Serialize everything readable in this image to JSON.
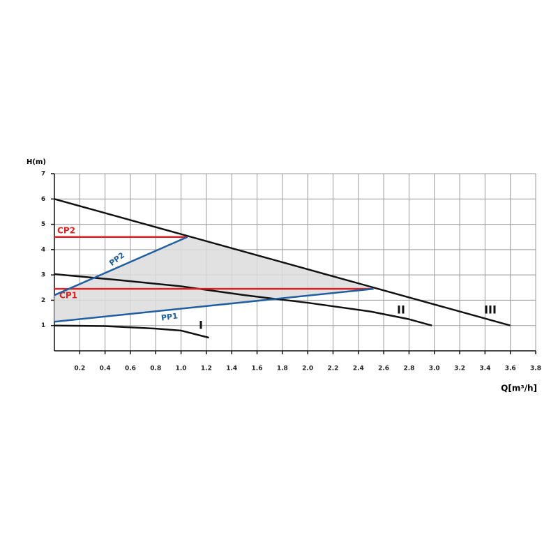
{
  "chart_data": {
    "type": "line",
    "y_label": "H(m)",
    "x_label": "Q[m³/h]",
    "xlim": [
      0,
      3.8
    ],
    "xticks": [
      0.2,
      0.4,
      0.6,
      0.8,
      {
        "value": 1,
        "label": "1.0"
      },
      1.2,
      1.4,
      1.6,
      1.8,
      {
        "value": 2,
        "label": "2.0"
      },
      2.2,
      2.4,
      2.6,
      2.8,
      {
        "value": 3,
        "label": "3.0"
      },
      3.2,
      3.4,
      3.6,
      3.8
    ],
    "ylim": [
      0,
      7
    ],
    "yticks": [
      1,
      2,
      3,
      4,
      5,
      6,
      7
    ],
    "grid": true,
    "shaded_region": {
      "color": "#dcdcdc",
      "x": [
        0,
        0,
        1.05,
        2.52
      ],
      "y": [
        1.15,
        2.2,
        4.5,
        2.45
      ]
    },
    "series": [
      {
        "name": "III",
        "color": "#111111",
        "x": [
          0,
          3.6
        ],
        "y": [
          6,
          1
        ]
      },
      {
        "name": "II",
        "color": "#111111",
        "x": [
          0,
          0.5,
          1.0,
          1.5,
          2.0,
          2.5,
          2.8,
          2.98
        ],
        "y": [
          3.03,
          2.8,
          2.55,
          2.2,
          1.9,
          1.55,
          1.25,
          1.0
        ]
      },
      {
        "name": "I",
        "color": "#111111",
        "x": [
          0,
          0.4,
          0.8,
          1.0,
          1.22
        ],
        "y": [
          1.0,
          0.98,
          0.88,
          0.8,
          0.52
        ]
      },
      {
        "name": "CP2",
        "color": "#e02020",
        "x": [
          0,
          1.05
        ],
        "y": [
          4.5,
          4.5
        ]
      },
      {
        "name": "CP1",
        "color": "#e02020",
        "x": [
          0,
          2.52
        ],
        "y": [
          2.45,
          2.45
        ]
      },
      {
        "name": "PP2",
        "color": "#1f5fa0",
        "x": [
          0,
          1.05
        ],
        "y": [
          2.2,
          4.5
        ]
      },
      {
        "name": "PP1",
        "color": "#1f5fa0",
        "x": [
          0,
          2.52
        ],
        "y": [
          1.15,
          2.45
        ]
      }
    ]
  }
}
